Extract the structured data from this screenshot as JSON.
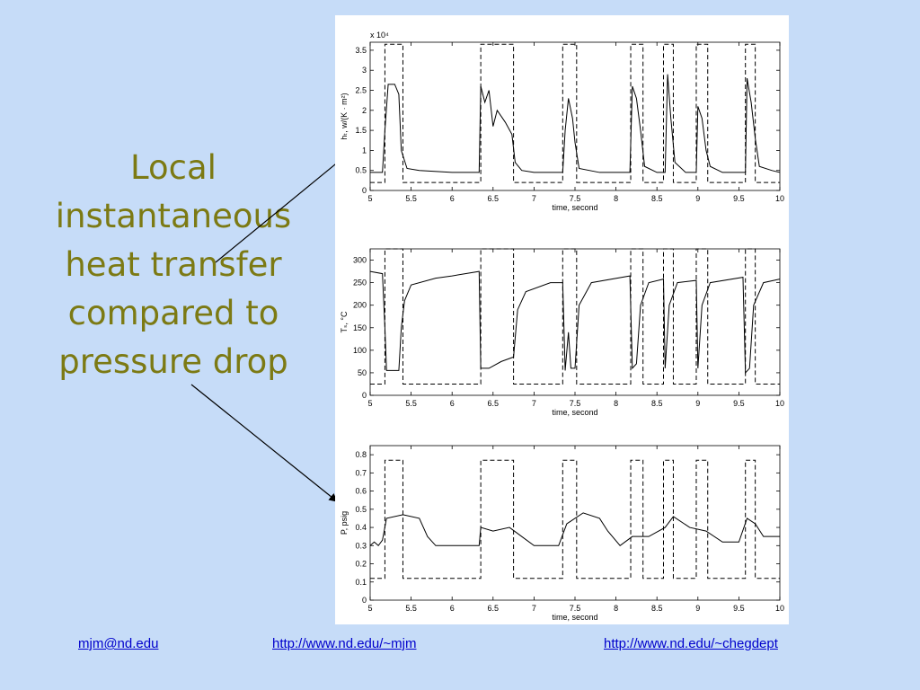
{
  "slide": {
    "caption": "Local instantaneous heat transfer compared to pressure drop",
    "links": [
      "mjm@nd.edu",
      "http://www.nd.edu/~mjm",
      "http://www.nd.edu/~chegdept"
    ]
  },
  "chart_data": [
    {
      "type": "line",
      "x_label": "time, second",
      "y_label": "hₜ, w/(K · m²)",
      "y_scale_note": "x 10⁴",
      "xlim": [
        5,
        10
      ],
      "xticks": [
        5,
        5.5,
        6,
        6.5,
        7,
        7.5,
        8,
        8.5,
        9,
        9.5,
        10
      ],
      "ylim": [
        0,
        3.7
      ],
      "yticks": [
        0,
        0.5,
        1,
        1.5,
        2,
        2.5,
        3,
        3.5
      ],
      "series": [
        {
          "color": "#000000",
          "style": "solid",
          "x": [
            5.0,
            5.15,
            5.18,
            5.22,
            5.3,
            5.35,
            5.38,
            5.45,
            5.6,
            6.0,
            6.33,
            6.35,
            6.4,
            6.45,
            6.5,
            6.55,
            6.65,
            6.73,
            6.77,
            6.85,
            7.0,
            7.35,
            7.38,
            7.42,
            7.47,
            7.5,
            7.55,
            7.8,
            8.17,
            8.2,
            8.25,
            8.3,
            8.35,
            8.5,
            8.6,
            8.63,
            8.67,
            8.72,
            8.85,
            8.98,
            9.0,
            9.05,
            9.1,
            9.15,
            9.3,
            9.58,
            9.6,
            9.65,
            9.7,
            9.75,
            9.9,
            10
          ],
          "values": [
            0.45,
            0.45,
            1.5,
            2.65,
            2.65,
            2.4,
            1.0,
            0.55,
            0.5,
            0.45,
            0.45,
            2.6,
            2.2,
            2.5,
            1.6,
            2.0,
            1.7,
            1.4,
            0.7,
            0.5,
            0.45,
            0.45,
            1.5,
            2.3,
            1.8,
            1.2,
            0.55,
            0.45,
            0.45,
            2.6,
            2.3,
            1.5,
            0.6,
            0.45,
            0.45,
            2.9,
            1.8,
            0.7,
            0.45,
            0.45,
            2.1,
            1.8,
            1.0,
            0.6,
            0.45,
            0.45,
            2.8,
            2.2,
            1.3,
            0.6,
            0.5,
            0.45
          ]
        },
        {
          "color": "#000000",
          "style": "dashed",
          "x": [
            5,
            5.18,
            5.18,
            5.4,
            5.4,
            6.35,
            6.35,
            6.75,
            6.75,
            7.35,
            7.35,
            7.52,
            7.52,
            8.18,
            8.18,
            8.33,
            8.33,
            8.58,
            8.58,
            8.7,
            8.7,
            8.98,
            8.98,
            9.12,
            9.12,
            9.58,
            9.58,
            9.7,
            9.7,
            10
          ],
          "values": [
            0.2,
            0.2,
            3.65,
            3.65,
            0.2,
            0.2,
            3.65,
            3.65,
            0.2,
            0.2,
            3.65,
            3.65,
            0.2,
            0.2,
            3.65,
            3.65,
            0.2,
            0.2,
            3.65,
            3.65,
            0.2,
            0.2,
            3.65,
            3.65,
            0.2,
            0.2,
            3.65,
            3.65,
            0.2,
            0.2
          ]
        }
      ]
    },
    {
      "type": "line",
      "x_label": "time, second",
      "y_label": "Tₛ, °C",
      "xlim": [
        5,
        10
      ],
      "xticks": [
        5,
        5.5,
        6,
        6.5,
        7,
        7.5,
        8,
        8.5,
        9,
        9.5,
        10
      ],
      "ylim": [
        0,
        325
      ],
      "yticks": [
        0,
        50,
        100,
        150,
        200,
        250,
        300
      ],
      "series": [
        {
          "color": "#000000",
          "style": "solid",
          "x": [
            5.0,
            5.15,
            5.18,
            5.2,
            5.35,
            5.38,
            5.42,
            5.5,
            5.8,
            6.0,
            6.33,
            6.35,
            6.45,
            6.6,
            6.75,
            6.8,
            6.9,
            7.2,
            7.35,
            7.38,
            7.42,
            7.45,
            7.5,
            7.55,
            7.7,
            8.17,
            8.2,
            8.25,
            8.3,
            8.4,
            8.58,
            8.6,
            8.65,
            8.75,
            8.98,
            9.0,
            9.05,
            9.15,
            9.55,
            9.58,
            9.63,
            9.68,
            9.8,
            10
          ],
          "values": [
            275,
            270,
            150,
            55,
            55,
            150,
            210,
            245,
            260,
            265,
            275,
            60,
            60,
            75,
            85,
            190,
            230,
            250,
            250,
            55,
            140,
            60,
            60,
            200,
            250,
            265,
            60,
            70,
            200,
            250,
            258,
            60,
            200,
            250,
            255,
            60,
            200,
            250,
            262,
            50,
            60,
            200,
            250,
            258
          ]
        },
        {
          "color": "#000000",
          "style": "dashed",
          "x": [
            5,
            5.18,
            5.18,
            5.4,
            5.4,
            6.35,
            6.35,
            6.75,
            6.75,
            7.35,
            7.35,
            7.52,
            7.52,
            8.18,
            8.18,
            8.33,
            8.33,
            8.58,
            8.58,
            8.7,
            8.7,
            8.98,
            8.98,
            9.12,
            9.12,
            9.58,
            9.58,
            9.7,
            9.7,
            10
          ],
          "values": [
            25,
            25,
            325,
            325,
            25,
            25,
            325,
            325,
            25,
            25,
            325,
            325,
            25,
            25,
            325,
            325,
            25,
            25,
            325,
            325,
            25,
            25,
            325,
            325,
            25,
            25,
            325,
            325,
            25,
            25
          ]
        }
      ]
    },
    {
      "type": "line",
      "x_label": "time, second",
      "y_label": "P, psig",
      "xlim": [
        5,
        10
      ],
      "xticks": [
        5,
        5.5,
        6,
        6.5,
        7,
        7.5,
        8,
        8.5,
        9,
        9.5,
        10
      ],
      "ylim": [
        0,
        0.85
      ],
      "yticks": [
        0,
        0.1,
        0.2,
        0.3,
        0.4,
        0.5,
        0.6,
        0.7,
        0.8
      ],
      "series": [
        {
          "color": "#000000",
          "style": "solid",
          "x": [
            5.0,
            5.05,
            5.1,
            5.15,
            5.2,
            5.4,
            5.6,
            5.7,
            5.8,
            6.0,
            6.33,
            6.35,
            6.5,
            6.7,
            6.85,
            7.0,
            7.3,
            7.4,
            7.6,
            7.8,
            7.9,
            8.05,
            8.2,
            8.4,
            8.6,
            8.7,
            8.9,
            9.1,
            9.3,
            9.5,
            9.6,
            9.7,
            9.8,
            10
          ],
          "values": [
            0.3,
            0.32,
            0.3,
            0.33,
            0.45,
            0.47,
            0.45,
            0.35,
            0.3,
            0.3,
            0.3,
            0.4,
            0.38,
            0.4,
            0.35,
            0.3,
            0.3,
            0.42,
            0.48,
            0.45,
            0.38,
            0.3,
            0.35,
            0.35,
            0.4,
            0.46,
            0.4,
            0.38,
            0.32,
            0.32,
            0.45,
            0.42,
            0.35,
            0.35
          ]
        },
        {
          "color": "#000000",
          "style": "dashed",
          "x": [
            5,
            5.18,
            5.18,
            5.4,
            5.4,
            6.35,
            6.35,
            6.75,
            6.75,
            7.35,
            7.35,
            7.52,
            7.52,
            8.18,
            8.18,
            8.33,
            8.33,
            8.58,
            8.58,
            8.7,
            8.7,
            8.98,
            8.98,
            9.12,
            9.12,
            9.58,
            9.58,
            9.7,
            9.7,
            10
          ],
          "values": [
            0.12,
            0.12,
            0.77,
            0.77,
            0.12,
            0.12,
            0.77,
            0.77,
            0.12,
            0.12,
            0.77,
            0.77,
            0.12,
            0.12,
            0.77,
            0.77,
            0.12,
            0.12,
            0.77,
            0.77,
            0.12,
            0.12,
            0.77,
            0.77,
            0.12,
            0.12,
            0.77,
            0.77,
            0.12,
            0.12
          ]
        }
      ]
    }
  ]
}
